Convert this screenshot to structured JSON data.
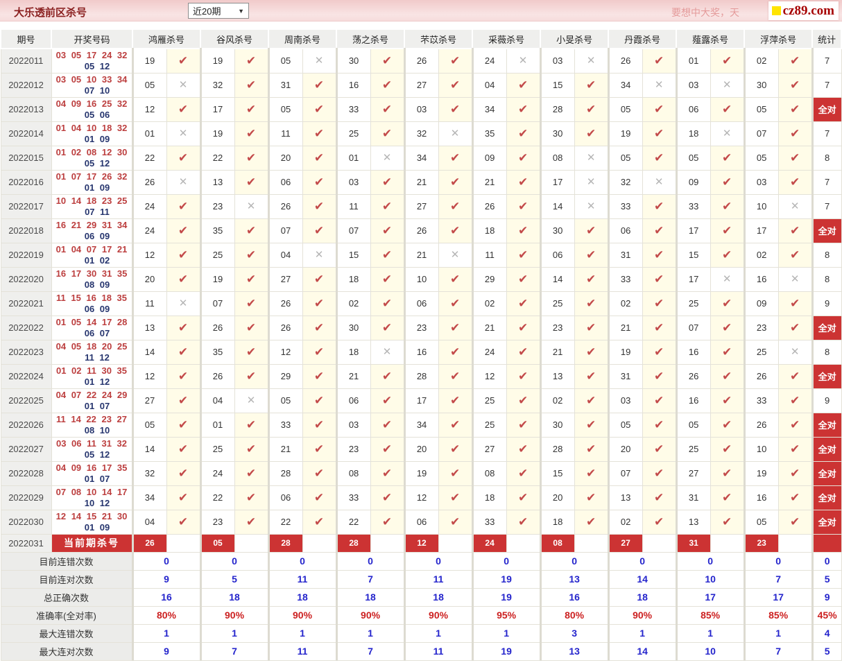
{
  "header": {
    "title": "大乐透前区杀号",
    "range_select": {
      "value": "近20期",
      "arrow": "▼"
    },
    "promo_text": "要想中大奖，天",
    "logo": {
      "text": "cz89.com"
    }
  },
  "table": {
    "col_period": "期号",
    "col_draw": "开奖号码",
    "experts": [
      "鸿雁杀号",
      "谷风杀号",
      "周南杀号",
      "荡之杀号",
      "芣苡杀号",
      "采薇杀号",
      "小旻杀号",
      "丹霞杀号",
      "薤露杀号",
      "浮萍杀号"
    ],
    "col_stat": "统计",
    "all_correct_label": "全对",
    "marks": {
      "hit": "✔",
      "miss": "✕"
    },
    "rows": [
      {
        "p": "2022011",
        "f": "03 05 17 24 32",
        "b": "05 12",
        "k": [
          [
            "19",
            1
          ],
          [
            "19",
            1
          ],
          [
            "05",
            0
          ],
          [
            "30",
            1
          ],
          [
            "26",
            1
          ],
          [
            "24",
            0
          ],
          [
            "03",
            0
          ],
          [
            "26",
            1
          ],
          [
            "01",
            1
          ],
          [
            "02",
            1
          ]
        ],
        "s": "7"
      },
      {
        "p": "2022012",
        "f": "03 05 10 33 34",
        "b": "07 10",
        "k": [
          [
            "05",
            0
          ],
          [
            "32",
            1
          ],
          [
            "31",
            1
          ],
          [
            "16",
            1
          ],
          [
            "27",
            1
          ],
          [
            "04",
            1
          ],
          [
            "15",
            1
          ],
          [
            "34",
            0
          ],
          [
            "03",
            0
          ],
          [
            "30",
            1
          ]
        ],
        "s": "7"
      },
      {
        "p": "2022013",
        "f": "04 09 16 25 32",
        "b": "05 06",
        "k": [
          [
            "12",
            1
          ],
          [
            "17",
            1
          ],
          [
            "05",
            1
          ],
          [
            "33",
            1
          ],
          [
            "03",
            1
          ],
          [
            "34",
            1
          ],
          [
            "28",
            1
          ],
          [
            "05",
            1
          ],
          [
            "06",
            1
          ],
          [
            "05",
            1
          ]
        ],
        "s": "全对"
      },
      {
        "p": "2022014",
        "f": "01 04 10 18 32",
        "b": "01 09",
        "k": [
          [
            "01",
            0
          ],
          [
            "19",
            1
          ],
          [
            "11",
            1
          ],
          [
            "25",
            1
          ],
          [
            "32",
            0
          ],
          [
            "35",
            1
          ],
          [
            "30",
            1
          ],
          [
            "19",
            1
          ],
          [
            "18",
            0
          ],
          [
            "07",
            1
          ]
        ],
        "s": "7"
      },
      {
        "p": "2022015",
        "f": "01 02 08 12 30",
        "b": "05 12",
        "k": [
          [
            "22",
            1
          ],
          [
            "22",
            1
          ],
          [
            "20",
            1
          ],
          [
            "01",
            0
          ],
          [
            "34",
            1
          ],
          [
            "09",
            1
          ],
          [
            "08",
            0
          ],
          [
            "05",
            1
          ],
          [
            "05",
            1
          ],
          [
            "05",
            1
          ]
        ],
        "s": "8"
      },
      {
        "p": "2022016",
        "f": "01 07 17 26 32",
        "b": "01 09",
        "k": [
          [
            "26",
            0
          ],
          [
            "13",
            1
          ],
          [
            "06",
            1
          ],
          [
            "03",
            1
          ],
          [
            "21",
            1
          ],
          [
            "21",
            1
          ],
          [
            "17",
            0
          ],
          [
            "32",
            0
          ],
          [
            "09",
            1
          ],
          [
            "03",
            1
          ]
        ],
        "s": "7"
      },
      {
        "p": "2022017",
        "f": "10 14 18 23 25",
        "b": "07 11",
        "k": [
          [
            "24",
            1
          ],
          [
            "23",
            0
          ],
          [
            "26",
            1
          ],
          [
            "11",
            1
          ],
          [
            "27",
            1
          ],
          [
            "26",
            1
          ],
          [
            "14",
            0
          ],
          [
            "33",
            1
          ],
          [
            "33",
            1
          ],
          [
            "10",
            0
          ]
        ],
        "s": "7"
      },
      {
        "p": "2022018",
        "f": "16 21 29 31 34",
        "b": "06 09",
        "k": [
          [
            "24",
            1
          ],
          [
            "35",
            1
          ],
          [
            "07",
            1
          ],
          [
            "07",
            1
          ],
          [
            "26",
            1
          ],
          [
            "18",
            1
          ],
          [
            "30",
            1
          ],
          [
            "06",
            1
          ],
          [
            "17",
            1
          ],
          [
            "17",
            1
          ]
        ],
        "s": "全对"
      },
      {
        "p": "2022019",
        "f": "01 04 07 17 21",
        "b": "01 02",
        "k": [
          [
            "12",
            1
          ],
          [
            "25",
            1
          ],
          [
            "04",
            0
          ],
          [
            "15",
            1
          ],
          [
            "21",
            0
          ],
          [
            "11",
            1
          ],
          [
            "06",
            1
          ],
          [
            "31",
            1
          ],
          [
            "15",
            1
          ],
          [
            "02",
            1
          ]
        ],
        "s": "8"
      },
      {
        "p": "2022020",
        "f": "16 17 30 31 35",
        "b": "08 09",
        "k": [
          [
            "20",
            1
          ],
          [
            "19",
            1
          ],
          [
            "27",
            1
          ],
          [
            "18",
            1
          ],
          [
            "10",
            1
          ],
          [
            "29",
            1
          ],
          [
            "14",
            1
          ],
          [
            "33",
            1
          ],
          [
            "17",
            0
          ],
          [
            "16",
            0
          ]
        ],
        "s": "8"
      },
      {
        "p": "2022021",
        "f": "11 15 16 18 35",
        "b": "06 09",
        "k": [
          [
            "11",
            0
          ],
          [
            "07",
            1
          ],
          [
            "26",
            1
          ],
          [
            "02",
            1
          ],
          [
            "06",
            1
          ],
          [
            "02",
            1
          ],
          [
            "25",
            1
          ],
          [
            "02",
            1
          ],
          [
            "25",
            1
          ],
          [
            "09",
            1
          ]
        ],
        "s": "9"
      },
      {
        "p": "2022022",
        "f": "01 05 14 17 28",
        "b": "06 07",
        "k": [
          [
            "13",
            1
          ],
          [
            "26",
            1
          ],
          [
            "26",
            1
          ],
          [
            "30",
            1
          ],
          [
            "23",
            1
          ],
          [
            "21",
            1
          ],
          [
            "23",
            1
          ],
          [
            "21",
            1
          ],
          [
            "07",
            1
          ],
          [
            "23",
            1
          ]
        ],
        "s": "全对"
      },
      {
        "p": "2022023",
        "f": "04 05 18 20 25",
        "b": "11 12",
        "k": [
          [
            "14",
            1
          ],
          [
            "35",
            1
          ],
          [
            "12",
            1
          ],
          [
            "18",
            0
          ],
          [
            "16",
            1
          ],
          [
            "24",
            1
          ],
          [
            "21",
            1
          ],
          [
            "19",
            1
          ],
          [
            "16",
            1
          ],
          [
            "25",
            0
          ]
        ],
        "s": "8"
      },
      {
        "p": "2022024",
        "f": "01 02 11 30 35",
        "b": "01 12",
        "k": [
          [
            "12",
            1
          ],
          [
            "26",
            1
          ],
          [
            "29",
            1
          ],
          [
            "21",
            1
          ],
          [
            "28",
            1
          ],
          [
            "12",
            1
          ],
          [
            "13",
            1
          ],
          [
            "31",
            1
          ],
          [
            "26",
            1
          ],
          [
            "26",
            1
          ]
        ],
        "s": "全对"
      },
      {
        "p": "2022025",
        "f": "04 07 22 24 29",
        "b": "01 07",
        "k": [
          [
            "27",
            1
          ],
          [
            "04",
            0
          ],
          [
            "05",
            1
          ],
          [
            "06",
            1
          ],
          [
            "17",
            1
          ],
          [
            "25",
            1
          ],
          [
            "02",
            1
          ],
          [
            "03",
            1
          ],
          [
            "16",
            1
          ],
          [
            "33",
            1
          ]
        ],
        "s": "9"
      },
      {
        "p": "2022026",
        "f": "11 14 22 23 27",
        "b": "08 10",
        "k": [
          [
            "05",
            1
          ],
          [
            "01",
            1
          ],
          [
            "33",
            1
          ],
          [
            "03",
            1
          ],
          [
            "34",
            1
          ],
          [
            "25",
            1
          ],
          [
            "30",
            1
          ],
          [
            "05",
            1
          ],
          [
            "05",
            1
          ],
          [
            "26",
            1
          ]
        ],
        "s": "全对"
      },
      {
        "p": "2022027",
        "f": "03 06 11 31 32",
        "b": "05 12",
        "k": [
          [
            "14",
            1
          ],
          [
            "25",
            1
          ],
          [
            "21",
            1
          ],
          [
            "23",
            1
          ],
          [
            "20",
            1
          ],
          [
            "27",
            1
          ],
          [
            "28",
            1
          ],
          [
            "20",
            1
          ],
          [
            "25",
            1
          ],
          [
            "10",
            1
          ]
        ],
        "s": "全对"
      },
      {
        "p": "2022028",
        "f": "04 09 16 17 35",
        "b": "01 07",
        "k": [
          [
            "32",
            1
          ],
          [
            "24",
            1
          ],
          [
            "28",
            1
          ],
          [
            "08",
            1
          ],
          [
            "19",
            1
          ],
          [
            "08",
            1
          ],
          [
            "15",
            1
          ],
          [
            "07",
            1
          ],
          [
            "27",
            1
          ],
          [
            "19",
            1
          ]
        ],
        "s": "全对"
      },
      {
        "p": "2022029",
        "f": "07 08 10 14 17",
        "b": "10 12",
        "k": [
          [
            "34",
            1
          ],
          [
            "22",
            1
          ],
          [
            "06",
            1
          ],
          [
            "33",
            1
          ],
          [
            "12",
            1
          ],
          [
            "18",
            1
          ],
          [
            "20",
            1
          ],
          [
            "13",
            1
          ],
          [
            "31",
            1
          ],
          [
            "16",
            1
          ]
        ],
        "s": "全对"
      },
      {
        "p": "2022030",
        "f": "12 14 15 21 30",
        "b": "01 09",
        "k": [
          [
            "04",
            1
          ],
          [
            "23",
            1
          ],
          [
            "22",
            1
          ],
          [
            "22",
            1
          ],
          [
            "06",
            1
          ],
          [
            "33",
            1
          ],
          [
            "18",
            1
          ],
          [
            "02",
            1
          ],
          [
            "13",
            1
          ],
          [
            "05",
            1
          ]
        ],
        "s": "全对"
      }
    ],
    "current_row": {
      "period": "2022031",
      "label": "当前期杀号",
      "kills": [
        "26",
        "05",
        "28",
        "28",
        "12",
        "24",
        "08",
        "27",
        "31",
        "23"
      ]
    },
    "summary_rows": [
      {
        "label": "目前连错次数",
        "values": [
          "0",
          "0",
          "0",
          "0",
          "0",
          "0",
          "0",
          "0",
          "0",
          "0"
        ],
        "total": "0",
        "accent": "blue"
      },
      {
        "label": "目前连对次数",
        "values": [
          "9",
          "5",
          "11",
          "7",
          "11",
          "19",
          "13",
          "14",
          "10",
          "7"
        ],
        "total": "5",
        "accent": "blue"
      },
      {
        "label": "总正确次数",
        "values": [
          "16",
          "18",
          "18",
          "18",
          "18",
          "19",
          "16",
          "18",
          "17",
          "17"
        ],
        "total": "9",
        "accent": "blue"
      },
      {
        "label": "准确率(全对率)",
        "values": [
          "80%",
          "90%",
          "90%",
          "90%",
          "90%",
          "95%",
          "80%",
          "90%",
          "85%",
          "85%"
        ],
        "total": "45%",
        "accent": "red"
      },
      {
        "label": "最大连错次数",
        "values": [
          "1",
          "1",
          "1",
          "1",
          "1",
          "1",
          "3",
          "1",
          "1",
          "1"
        ],
        "total": "4",
        "accent": "blue"
      },
      {
        "label": "最大连对次数",
        "values": [
          "9",
          "7",
          "11",
          "7",
          "11",
          "19",
          "13",
          "14",
          "10",
          "7"
        ],
        "total": "5",
        "accent": "blue"
      }
    ]
  },
  "colors": {
    "accent_red": "#cc3333",
    "check_red": "#c34a4a",
    "cross_gray": "#b5b5b5",
    "hit_cell_cream": "#fffce8",
    "front_number_red": "#bc3e3e",
    "back_number_navy": "#26356e",
    "summary_blue": "#2424cc",
    "summary_red": "#cc2020",
    "logo_yellow": "#ffe400",
    "logo_text_red": "#a60000"
  }
}
